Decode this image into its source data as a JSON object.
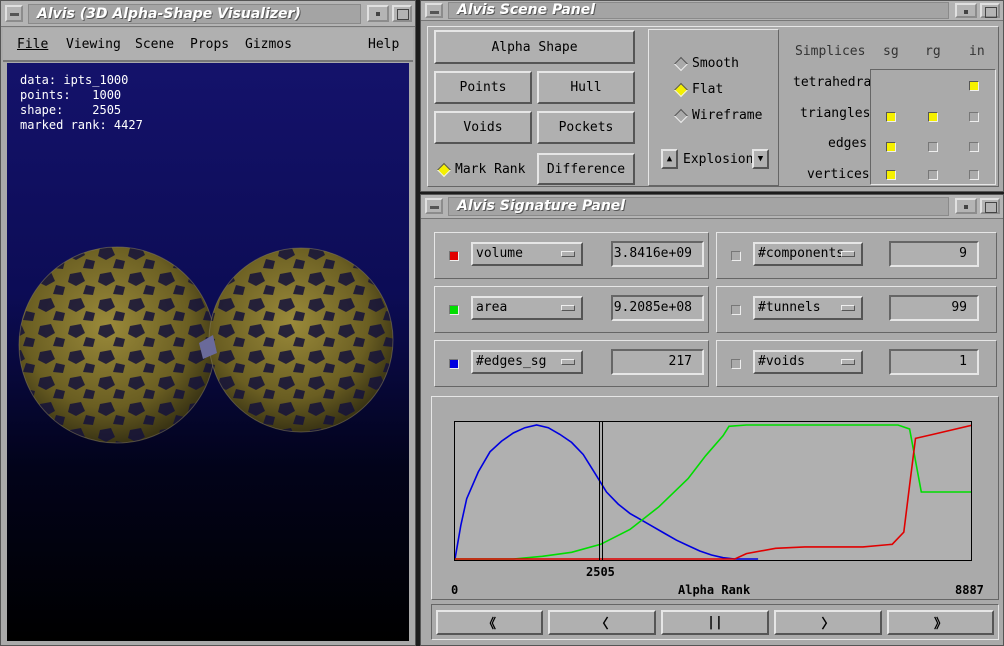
{
  "viz": {
    "title": "Alvis (3D Alpha-Shape Visualizer)",
    "menu": [
      "File",
      "Viewing",
      "Scene",
      "Props",
      "Gizmos",
      "Help"
    ],
    "info": [
      "data: ipts_1000",
      "points:   1000",
      "shape:    2505",
      "marked rank: 4427"
    ]
  },
  "scene": {
    "title": "Alvis Scene Panel",
    "alpha_shape": "Alpha Shape",
    "points": "Points",
    "hull": "Hull",
    "voids": "Voids",
    "pockets": "Pockets",
    "mark_rank": "Mark Rank",
    "difference": "Difference",
    "render_modes": [
      {
        "label": "Smooth",
        "selected": false
      },
      {
        "label": "Flat",
        "selected": true
      },
      {
        "label": "Wireframe",
        "selected": false
      }
    ],
    "explosion": "Explosion",
    "simplices": {
      "header": "Simplices",
      "cols": [
        "sg",
        "rg",
        "in"
      ],
      "rows": [
        {
          "label": "tetrahedra",
          "states": [
            false,
            false,
            true
          ]
        },
        {
          "label": "triangles",
          "states": [
            true,
            true,
            false
          ]
        },
        {
          "label": "edges",
          "states": [
            true,
            false,
            false
          ]
        },
        {
          "label": "vertices",
          "states": [
            true,
            false,
            false
          ]
        }
      ]
    }
  },
  "signature": {
    "title": "Alvis Signature Panel",
    "left": [
      {
        "name": "volume",
        "value": "3.8416e+09",
        "color": "#e00000"
      },
      {
        "name": "area",
        "value": "9.2085e+08",
        "color": "#00dd00"
      },
      {
        "name": "#edges_sg",
        "value": "217",
        "color": "#0000e0"
      }
    ],
    "right": [
      {
        "name": "#components",
        "value": "9"
      },
      {
        "name": "#tunnels",
        "value": "99"
      },
      {
        "name": "#voids",
        "value": "1"
      }
    ],
    "plot": {
      "xmin_label": "0",
      "xmax_label": "8887",
      "xlabel": "Alpha Rank",
      "marker_label": "2505"
    },
    "nav": [
      "《",
      "〈",
      "||",
      "〉",
      "》"
    ]
  },
  "chart_data": {
    "type": "line",
    "xlabel": "Alpha Rank",
    "xlim": [
      0,
      8887
    ],
    "marker": 2505,
    "series": [
      {
        "name": "#edges_sg",
        "color": "#0000e0",
        "x": [
          0,
          100,
          200,
          400,
          600,
          800,
          1000,
          1200,
          1400,
          1600,
          1800,
          2000,
          2200,
          2400,
          2600,
          2800,
          3000,
          3200,
          3400,
          3600,
          3800,
          4000,
          4200,
          4400,
          4600,
          4800,
          5000,
          5200
        ],
        "y": [
          0.0,
          0.25,
          0.45,
          0.65,
          0.8,
          0.88,
          0.94,
          0.98,
          1.0,
          0.98,
          0.93,
          0.87,
          0.78,
          0.64,
          0.5,
          0.41,
          0.34,
          0.29,
          0.24,
          0.19,
          0.14,
          0.1,
          0.06,
          0.03,
          0.01,
          0.0,
          0.0,
          0.0
        ]
      },
      {
        "name": "area",
        "color": "#00dd00",
        "x": [
          0,
          700,
          1000,
          1500,
          2000,
          2500,
          3000,
          3500,
          4000,
          4300,
          4600,
          4700,
          5000,
          6000,
          7000,
          7600,
          7800,
          8000,
          8887
        ],
        "y": [
          0,
          0,
          0.0,
          0.02,
          0.05,
          0.11,
          0.22,
          0.39,
          0.6,
          0.77,
          0.92,
          0.99,
          1.0,
          1.0,
          1.0,
          1.0,
          0.97,
          0.5,
          0.5
        ]
      },
      {
        "name": "volume",
        "color": "#e00000",
        "x": [
          0,
          4300,
          4600,
          4800,
          5000,
          5500,
          6000,
          7000,
          7500,
          7700,
          7800,
          7900,
          8200,
          8887
        ],
        "y": [
          0,
          0,
          0.0,
          0.0,
          0.04,
          0.08,
          0.09,
          0.09,
          0.11,
          0.2,
          0.55,
          0.9,
          0.93,
          1.0
        ]
      }
    ]
  }
}
